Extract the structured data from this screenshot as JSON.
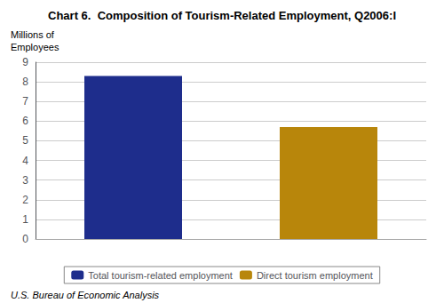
{
  "chart_data": {
    "type": "bar",
    "title": "Chart 6.  Composition of Tourism-Related Employment, Q2006:I",
    "ylabel": "Millions of\nEmployees",
    "categories": [
      "Total tourism-related employment",
      "Direct tourism employment"
    ],
    "values": [
      8.3,
      5.7
    ],
    "colors": [
      "#1e2d8c",
      "#b8860b"
    ],
    "ylim": [
      0,
      9
    ],
    "yticks": [
      0,
      1,
      2,
      3,
      4,
      5,
      6,
      7,
      8,
      9
    ],
    "grid": true,
    "legend": "bottom",
    "tick_labels": "y",
    "footnote": "U.S. Bureau of Economic Analysis"
  }
}
